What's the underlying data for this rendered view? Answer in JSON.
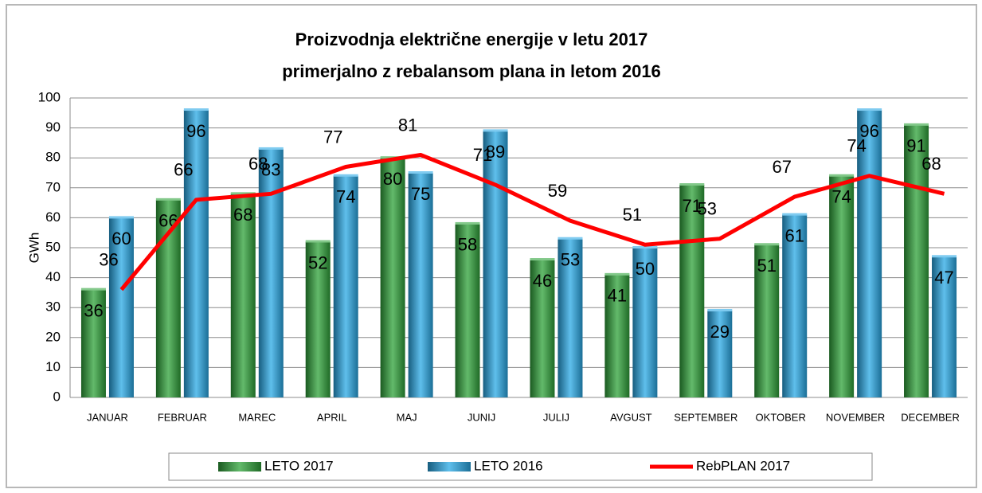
{
  "chart_data": {
    "type": "bar",
    "title": [
      "Proizvodnja električne energije v letu 2017",
      "primerjalno z rebalansom plana  in letom 2016"
    ],
    "ylabel": "GWh",
    "categories": [
      "JANUAR",
      "FEBRUAR",
      "MAREC",
      "APRIL",
      "MAJ",
      "JUNIJ",
      "JULIJ",
      "AVGUST",
      "SEPTEMBER",
      "OKTOBER",
      "NOVEMBER",
      "DECEMBER"
    ],
    "series": [
      {
        "name": "LETO 2017",
        "type": "bar",
        "color": "#2fa33a",
        "values": [
          36,
          66,
          68,
          52,
          80,
          58,
          46,
          41,
          71,
          51,
          74,
          91
        ]
      },
      {
        "name": "LETO 2016",
        "type": "bar",
        "color": "#29a9e6",
        "values": [
          60,
          96,
          83,
          74,
          75,
          89,
          53,
          50,
          29,
          61,
          96,
          47
        ]
      },
      {
        "name": "RebPLAN 2017",
        "type": "line",
        "color": "#ff0000",
        "values": [
          36,
          66,
          68,
          77,
          81,
          71,
          59,
          51,
          53,
          67,
          74,
          68
        ]
      }
    ],
    "ylim": [
      0,
      100
    ],
    "yticks": [
      0,
      10,
      20,
      30,
      40,
      50,
      60,
      70,
      80,
      90,
      100
    ],
    "grid": true,
    "legend": "bottom"
  }
}
